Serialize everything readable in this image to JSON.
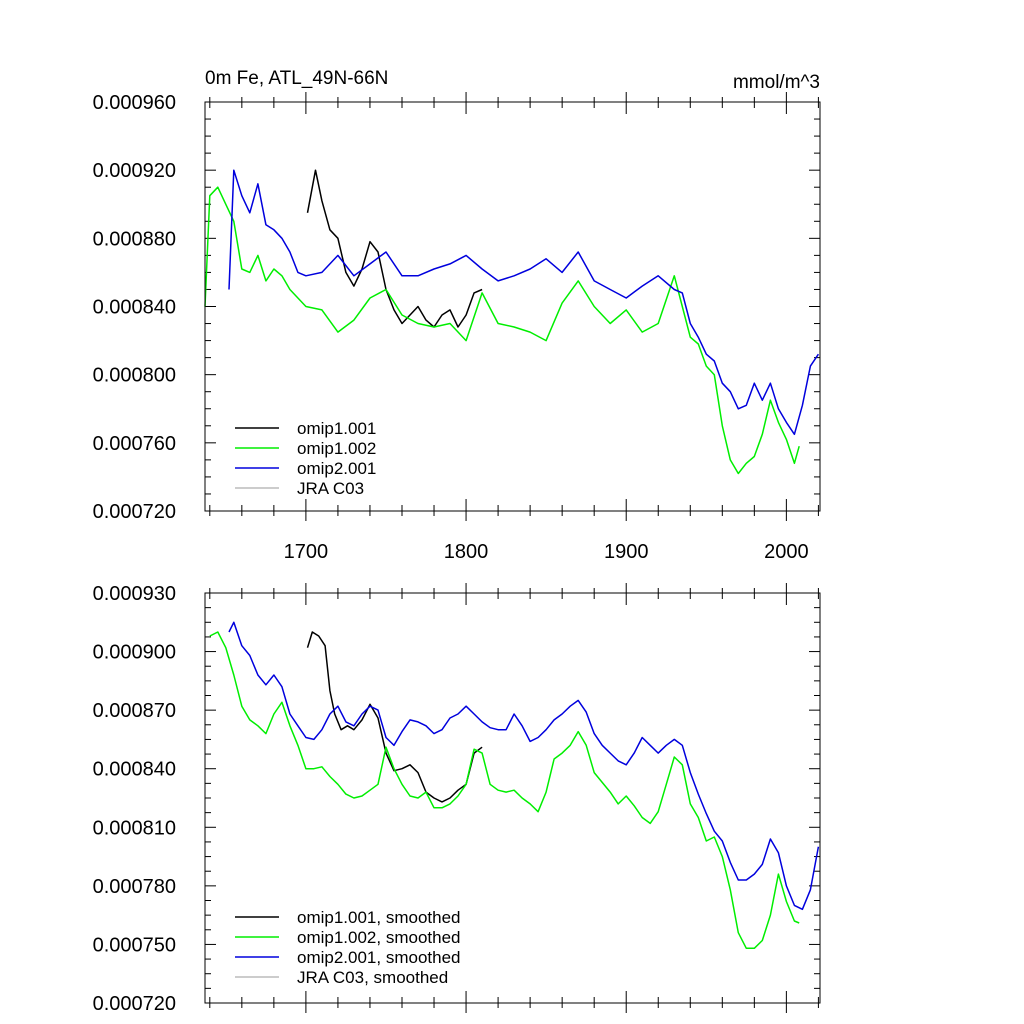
{
  "chart_data": [
    {
      "type": "line",
      "title": "0m Fe, ATL_49N-66N",
      "units": "mmol/m^3",
      "xlabel": "",
      "ylabel": "",
      "xlim": [
        1637,
        2021
      ],
      "ylim": [
        0.00072,
        0.00096
      ],
      "x_ticks": [
        1700,
        1800,
        1900,
        2000
      ],
      "x_tick_labels": [
        "1700",
        "1800",
        "1900",
        "2000"
      ],
      "y_ticks": [
        0.00072,
        0.00076,
        0.0008,
        0.00084,
        0.00088,
        0.00092,
        0.00096
      ],
      "y_tick_labels": [
        "0.000720",
        "0.000760",
        "0.000800",
        "0.000840",
        "0.000880",
        "0.000920",
        "0.000960"
      ],
      "grid": false,
      "legend_position": "bottom-left",
      "series": [
        {
          "name": "omip1.001",
          "color": "#000000",
          "x": [
            1701,
            1706,
            1710,
            1715,
            1720,
            1725,
            1730,
            1735,
            1740,
            1745,
            1750,
            1755,
            1760,
            1765,
            1770,
            1775,
            1780,
            1785,
            1790,
            1795,
            1800,
            1805,
            1810
          ],
          "y": [
            0.000895,
            0.00092,
            0.000902,
            0.000885,
            0.00088,
            0.00086,
            0.000852,
            0.000862,
            0.000878,
            0.000872,
            0.00085,
            0.000838,
            0.00083,
            0.000835,
            0.00084,
            0.000832,
            0.000828,
            0.000835,
            0.000838,
            0.000828,
            0.000835,
            0.000848,
            0.00085
          ]
        },
        {
          "name": "omip1.002",
          "color": "#00ee00",
          "x": [
            1637,
            1640,
            1645,
            1650,
            1655,
            1660,
            1665,
            1670,
            1675,
            1680,
            1685,
            1690,
            1695,
            1700,
            1710,
            1720,
            1730,
            1740,
            1750,
            1760,
            1770,
            1780,
            1790,
            1800,
            1810,
            1820,
            1830,
            1840,
            1850,
            1860,
            1870,
            1880,
            1890,
            1900,
            1910,
            1920,
            1930,
            1935,
            1940,
            1945,
            1950,
            1955,
            1960,
            1965,
            1970,
            1975,
            1980,
            1985,
            1990,
            1995,
            2000,
            2005,
            2008
          ],
          "y": [
            0.00084,
            0.000905,
            0.00091,
            0.0009,
            0.00089,
            0.000862,
            0.00086,
            0.00087,
            0.000855,
            0.000862,
            0.000858,
            0.00085,
            0.000845,
            0.00084,
            0.000838,
            0.000825,
            0.000832,
            0.000845,
            0.00085,
            0.000835,
            0.00083,
            0.000828,
            0.00083,
            0.00082,
            0.000848,
            0.00083,
            0.000828,
            0.000825,
            0.00082,
            0.000842,
            0.000855,
            0.00084,
            0.00083,
            0.000838,
            0.000825,
            0.00083,
            0.000858,
            0.00084,
            0.000822,
            0.000818,
            0.000805,
            0.0008,
            0.00077,
            0.00075,
            0.000742,
            0.000748,
            0.000752,
            0.000765,
            0.000785,
            0.000772,
            0.000762,
            0.000748,
            0.000758
          ]
        },
        {
          "name": "omip2.001",
          "color": "#0000dd",
          "x": [
            1652,
            1655,
            1660,
            1665,
            1670,
            1675,
            1680,
            1685,
            1690,
            1695,
            1700,
            1710,
            1720,
            1730,
            1740,
            1750,
            1760,
            1770,
            1780,
            1790,
            1800,
            1810,
            1820,
            1830,
            1840,
            1850,
            1860,
            1870,
            1880,
            1890,
            1900,
            1910,
            1920,
            1930,
            1935,
            1940,
            1945,
            1950,
            1955,
            1960,
            1965,
            1970,
            1975,
            1980,
            1985,
            1990,
            1995,
            2000,
            2005,
            2010,
            2015,
            2020
          ],
          "y": [
            0.00085,
            0.00092,
            0.000905,
            0.000895,
            0.000912,
            0.000888,
            0.000885,
            0.00088,
            0.000872,
            0.00086,
            0.000858,
            0.00086,
            0.00087,
            0.000858,
            0.000865,
            0.000872,
            0.000858,
            0.000858,
            0.000862,
            0.000865,
            0.00087,
            0.000862,
            0.000855,
            0.000858,
            0.000862,
            0.000868,
            0.00086,
            0.000872,
            0.000855,
            0.00085,
            0.000845,
            0.000852,
            0.000858,
            0.00085,
            0.000848,
            0.00083,
            0.000822,
            0.000812,
            0.000808,
            0.000795,
            0.00079,
            0.00078,
            0.000782,
            0.000795,
            0.000785,
            0.000795,
            0.00078,
            0.000772,
            0.000765,
            0.000782,
            0.000805,
            0.000812
          ]
        },
        {
          "name": "JRA C03",
          "color": "#bbbbbb",
          "x": [],
          "y": []
        }
      ]
    },
    {
      "type": "line",
      "title": "",
      "units": "",
      "xlabel": "",
      "ylabel": "",
      "xlim": [
        1637,
        2021
      ],
      "ylim": [
        0.00072,
        0.00093
      ],
      "x_ticks": [
        1700,
        1800,
        1900,
        2000
      ],
      "x_tick_labels": [],
      "y_ticks": [
        0.00072,
        0.00075,
        0.00078,
        0.00081,
        0.00084,
        0.00087,
        0.0009,
        0.00093
      ],
      "y_tick_labels": [
        "0.000720",
        "0.000750",
        "0.000780",
        "0.000810",
        "0.000840",
        "0.000870",
        "0.000900",
        "0.000930"
      ],
      "grid": false,
      "legend_position": "bottom-left",
      "series": [
        {
          "name": "omip1.001, smoothed",
          "color": "#000000",
          "x": [
            1701,
            1704,
            1708,
            1712,
            1715,
            1718,
            1722,
            1726,
            1730,
            1735,
            1740,
            1745,
            1750,
            1755,
            1760,
            1765,
            1770,
            1775,
            1780,
            1785,
            1790,
            1795,
            1800,
            1805,
            1810
          ],
          "y": [
            0.000902,
            0.00091,
            0.000908,
            0.000903,
            0.00088,
            0.000868,
            0.00086,
            0.000862,
            0.00086,
            0.000865,
            0.000873,
            0.000866,
            0.000848,
            0.000839,
            0.00084,
            0.000842,
            0.000838,
            0.000828,
            0.000825,
            0.000823,
            0.000825,
            0.000829,
            0.000832,
            0.000848,
            0.000851
          ]
        },
        {
          "name": "omip1.002, smoothed",
          "color": "#00ee00",
          "x": [
            1640,
            1645,
            1650,
            1655,
            1660,
            1665,
            1670,
            1675,
            1680,
            1685,
            1690,
            1695,
            1700,
            1705,
            1710,
            1715,
            1720,
            1725,
            1730,
            1735,
            1740,
            1745,
            1750,
            1755,
            1760,
            1765,
            1770,
            1775,
            1780,
            1785,
            1790,
            1795,
            1800,
            1805,
            1810,
            1815,
            1820,
            1825,
            1830,
            1835,
            1840,
            1845,
            1850,
            1855,
            1860,
            1865,
            1870,
            1875,
            1880,
            1885,
            1890,
            1895,
            1900,
            1905,
            1910,
            1915,
            1920,
            1925,
            1930,
            1935,
            1940,
            1945,
            1950,
            1955,
            1960,
            1965,
            1970,
            1975,
            1980,
            1985,
            1990,
            1995,
            2000,
            2005,
            2008
          ],
          "y": [
            0.000908,
            0.00091,
            0.000902,
            0.000888,
            0.000872,
            0.000865,
            0.000862,
            0.000858,
            0.000868,
            0.000874,
            0.000862,
            0.000852,
            0.00084,
            0.00084,
            0.000841,
            0.000836,
            0.000832,
            0.000827,
            0.000825,
            0.000826,
            0.000829,
            0.000832,
            0.000851,
            0.00084,
            0.000832,
            0.000826,
            0.000825,
            0.000828,
            0.00082,
            0.00082,
            0.000822,
            0.000826,
            0.000832,
            0.00085,
            0.000848,
            0.000832,
            0.000829,
            0.000828,
            0.000829,
            0.000825,
            0.000822,
            0.000818,
            0.000828,
            0.000845,
            0.000848,
            0.000852,
            0.000859,
            0.000852,
            0.000838,
            0.000833,
            0.000828,
            0.000822,
            0.000826,
            0.000821,
            0.000815,
            0.000812,
            0.000818,
            0.000832,
            0.000846,
            0.000842,
            0.000822,
            0.000815,
            0.000803,
            0.000805,
            0.000795,
            0.000778,
            0.000756,
            0.000748,
            0.000748,
            0.000752,
            0.000765,
            0.000786,
            0.000772,
            0.000762,
            0.000761
          ]
        },
        {
          "name": "omip2.001, smoothed",
          "color": "#0000dd",
          "x": [
            1652,
            1655,
            1660,
            1665,
            1670,
            1675,
            1680,
            1685,
            1690,
            1695,
            1700,
            1705,
            1710,
            1715,
            1720,
            1725,
            1730,
            1735,
            1740,
            1745,
            1750,
            1755,
            1760,
            1765,
            1770,
            1775,
            1780,
            1785,
            1790,
            1795,
            1800,
            1805,
            1810,
            1815,
            1820,
            1825,
            1830,
            1835,
            1840,
            1845,
            1850,
            1855,
            1860,
            1865,
            1870,
            1875,
            1880,
            1885,
            1890,
            1895,
            1900,
            1905,
            1910,
            1915,
            1920,
            1925,
            1930,
            1935,
            1940,
            1945,
            1950,
            1955,
            1960,
            1965,
            1970,
            1975,
            1980,
            1985,
            1990,
            1995,
            2000,
            2005,
            2010,
            2015,
            2020
          ],
          "y": [
            0.00091,
            0.000915,
            0.000903,
            0.000898,
            0.000888,
            0.000883,
            0.000888,
            0.000882,
            0.000868,
            0.000862,
            0.000856,
            0.000855,
            0.00086,
            0.000868,
            0.000872,
            0.000864,
            0.000862,
            0.000868,
            0.000872,
            0.00087,
            0.000856,
            0.000852,
            0.000859,
            0.000865,
            0.000864,
            0.000862,
            0.000858,
            0.00086,
            0.000866,
            0.000868,
            0.000872,
            0.000868,
            0.000864,
            0.000861,
            0.00086,
            0.00086,
            0.000868,
            0.000862,
            0.000854,
            0.000856,
            0.00086,
            0.000865,
            0.000868,
            0.000872,
            0.000875,
            0.000869,
            0.000858,
            0.000852,
            0.000848,
            0.000844,
            0.000842,
            0.000848,
            0.000856,
            0.000852,
            0.000848,
            0.000852,
            0.000855,
            0.000852,
            0.000838,
            0.000827,
            0.000817,
            0.000808,
            0.000803,
            0.000792,
            0.000783,
            0.000783,
            0.000786,
            0.000791,
            0.000804,
            0.000797,
            0.00078,
            0.00077,
            0.000768,
            0.000778,
            0.0008
          ]
        },
        {
          "name": "JRA C03, smoothed",
          "color": "#bbbbbb",
          "x": [],
          "y": []
        }
      ]
    }
  ]
}
